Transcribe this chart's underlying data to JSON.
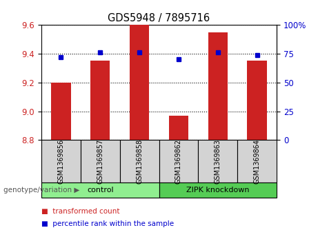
{
  "title": "GDS5948 / 7895716",
  "samples": [
    "GSM1369856",
    "GSM1369857",
    "GSM1369858",
    "GSM1369862",
    "GSM1369863",
    "GSM1369864"
  ],
  "bar_values": [
    9.2,
    9.35,
    9.6,
    8.97,
    9.55,
    9.35
  ],
  "percentile_values": [
    72,
    76,
    76,
    70,
    76,
    74
  ],
  "ylim_left": [
    8.8,
    9.6
  ],
  "ylim_right": [
    0,
    100
  ],
  "yticks_left": [
    8.8,
    9.0,
    9.2,
    9.4,
    9.6
  ],
  "yticks_right": [
    0,
    25,
    50,
    75,
    100
  ],
  "ytick_labels_right": [
    "0",
    "25",
    "50",
    "75",
    "100%"
  ],
  "bar_color": "#cc2222",
  "dot_color": "#0000cc",
  "bar_bottom": 8.8,
  "groups": [
    {
      "label": "control",
      "indices": [
        0,
        1,
        2
      ],
      "color": "#90ee90"
    },
    {
      "label": "ZIPK knockdown",
      "indices": [
        3,
        4,
        5
      ],
      "color": "#55cc55"
    }
  ],
  "group_label_prefix": "genotype/variation",
  "legend": [
    {
      "label": "transformed count",
      "color": "#cc2222"
    },
    {
      "label": "percentile rank within the sample",
      "color": "#0000cc"
    }
  ],
  "tick_label_color_left": "#cc2222",
  "tick_label_color_right": "#0000cc",
  "bar_width": 0.5,
  "sample_box_color": "#d3d3d3"
}
